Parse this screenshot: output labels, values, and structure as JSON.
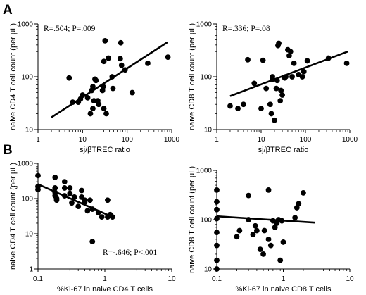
{
  "figure": {
    "panel_labels": [
      "A",
      "B"
    ]
  },
  "chart_data": [
    {
      "type": "scatter",
      "panel": "A",
      "xlabel": "sj/βTREC ratio",
      "ylabel": "naive CD4 T cell count (per μL)",
      "xscale": "log",
      "yscale": "log",
      "xlim": [
        1,
        1000
      ],
      "ylim": [
        10,
        1000
      ],
      "xticks": [
        "1",
        "10",
        "100",
        "1000"
      ],
      "yticks": [
        "10",
        "100",
        "1000"
      ],
      "annotation": {
        "r": "R=.504;",
        "p": "P=.009"
      },
      "annotation_position": "top-left",
      "points": [
        [
          5,
          95
        ],
        [
          6,
          33
        ],
        [
          8,
          33
        ],
        [
          9,
          38
        ],
        [
          10,
          45
        ],
        [
          13,
          40
        ],
        [
          15,
          20
        ],
        [
          16,
          55
        ],
        [
          17,
          25
        ],
        [
          17,
          65
        ],
        [
          18,
          35
        ],
        [
          19,
          90
        ],
        [
          20,
          85
        ],
        [
          22,
          35
        ],
        [
          23,
          30
        ],
        [
          28,
          55
        ],
        [
          29,
          65
        ],
        [
          30,
          25
        ],
        [
          30,
          195
        ],
        [
          32,
          480
        ],
        [
          34,
          20
        ],
        [
          38,
          225
        ],
        [
          46,
          100
        ],
        [
          48,
          60
        ],
        [
          70,
          220
        ],
        [
          72,
          440
        ],
        [
          75,
          165
        ],
        [
          90,
          135
        ],
        [
          130,
          50
        ],
        [
          290,
          180
        ],
        [
          820,
          235
        ]
      ],
      "trendline": [
        [
          2,
          17
        ],
        [
          800,
          450
        ]
      ]
    },
    {
      "type": "scatter",
      "panel": "A",
      "xlabel": "sj/βTREC ratio",
      "ylabel": "naive CD8 T cell count (per μL)",
      "xscale": "log",
      "yscale": "log",
      "xlim": [
        1,
        1000
      ],
      "ylim": [
        10,
        1000
      ],
      "xticks": [
        "1",
        "10",
        "100",
        "1000"
      ],
      "yticks": [
        "10",
        "100",
        "1000"
      ],
      "annotation": {
        "r": "R=.336;",
        "p": "P=.08"
      },
      "annotation_position": "top-left",
      "points": [
        [
          2,
          28
        ],
        [
          3,
          25
        ],
        [
          4,
          30
        ],
        [
          5,
          210
        ],
        [
          7,
          75
        ],
        [
          10,
          25
        ],
        [
          11,
          205
        ],
        [
          13,
          60
        ],
        [
          16,
          30
        ],
        [
          17,
          20
        ],
        [
          18,
          100
        ],
        [
          18,
          90
        ],
        [
          20,
          15
        ],
        [
          22,
          60
        ],
        [
          23,
          85
        ],
        [
          24,
          390
        ],
        [
          25,
          430
        ],
        [
          27,
          35
        ],
        [
          28,
          55
        ],
        [
          30,
          45
        ],
        [
          34,
          95
        ],
        [
          36,
          100
        ],
        [
          40,
          325
        ],
        [
          43,
          250
        ],
        [
          46,
          300
        ],
        [
          50,
          100
        ],
        [
          55,
          180
        ],
        [
          70,
          110
        ],
        [
          85,
          100
        ],
        [
          92,
          125
        ],
        [
          110,
          200
        ],
        [
          330,
          225
        ],
        [
          850,
          180
        ]
      ],
      "trendline": [
        [
          2,
          43
        ],
        [
          900,
          300
        ]
      ]
    },
    {
      "type": "scatter",
      "panel": "B",
      "xlabel": "%Ki-67 in naive CD4 T cells",
      "ylabel": "naive CD4 T cell count (per μL)",
      "xscale": "log",
      "yscale": "log",
      "xlim": [
        0.1,
        10
      ],
      "ylim": [
        1,
        1000
      ],
      "xticks": [
        "0.1",
        "1",
        "10"
      ],
      "yticks": [
        "1",
        "10",
        "100",
        "1000"
      ],
      "annotation": {
        "r": "R=-.646;",
        "p": "P<.001"
      },
      "annotation_position": "bottom-right",
      "points": [
        [
          0.1,
          450
        ],
        [
          0.1,
          220
        ],
        [
          0.1,
          180
        ],
        [
          0.18,
          400
        ],
        [
          0.18,
          200
        ],
        [
          0.18,
          150
        ],
        [
          0.18,
          120
        ],
        [
          0.19,
          100
        ],
        [
          0.19,
          90
        ],
        [
          0.25,
          300
        ],
        [
          0.25,
          200
        ],
        [
          0.25,
          120
        ],
        [
          0.3,
          200
        ],
        [
          0.3,
          140
        ],
        [
          0.32,
          75
        ],
        [
          0.35,
          110
        ],
        [
          0.4,
          60
        ],
        [
          0.45,
          170
        ],
        [
          0.45,
          110
        ],
        [
          0.5,
          90
        ],
        [
          0.5,
          80
        ],
        [
          0.55,
          45
        ],
        [
          0.6,
          90
        ],
        [
          0.65,
          50
        ],
        [
          0.65,
          6
        ],
        [
          0.8,
          40
        ],
        [
          0.9,
          30
        ],
        [
          1.1,
          90
        ],
        [
          1.1,
          30
        ],
        [
          1.2,
          35
        ],
        [
          1.3,
          30
        ]
      ],
      "trendline": [
        [
          0.1,
          255
        ],
        [
          1.3,
          30
        ]
      ]
    },
    {
      "type": "scatter",
      "panel": "B",
      "xlabel": "%Ki-67 in naive CD8 T cells",
      "ylabel": "naive CD8 T cell count (per μL)",
      "xscale": "log",
      "yscale": "log",
      "xlim": [
        0.1,
        10
      ],
      "ylim": [
        10,
        1000
      ],
      "xticks": [
        "0.1",
        "1",
        "10"
      ],
      "yticks": [
        "10",
        "100",
        "1000"
      ],
      "annotation": null,
      "points": [
        [
          0.1,
          400
        ],
        [
          0.1,
          230
        ],
        [
          0.1,
          160
        ],
        [
          0.1,
          105
        ],
        [
          0.1,
          55
        ],
        [
          0.1,
          30
        ],
        [
          0.1,
          15
        ],
        [
          0.1,
          10
        ],
        [
          0.2,
          45
        ],
        [
          0.22,
          60
        ],
        [
          0.3,
          310
        ],
        [
          0.3,
          100
        ],
        [
          0.35,
          50
        ],
        [
          0.38,
          75
        ],
        [
          0.4,
          60
        ],
        [
          0.45,
          25
        ],
        [
          0.5,
          20
        ],
        [
          0.52,
          60
        ],
        [
          0.6,
          400
        ],
        [
          0.6,
          40
        ],
        [
          0.65,
          30
        ],
        [
          0.7,
          95
        ],
        [
          0.75,
          70
        ],
        [
          0.8,
          85
        ],
        [
          0.85,
          100
        ],
        [
          0.9,
          15
        ],
        [
          0.95,
          95
        ],
        [
          1.0,
          35
        ],
        [
          1.5,
          110
        ],
        [
          1.6,
          175
        ],
        [
          1.7,
          210
        ],
        [
          2.0,
          350
        ]
      ],
      "trendline": [
        [
          0.1,
          117
        ],
        [
          3.0,
          87
        ]
      ]
    }
  ]
}
